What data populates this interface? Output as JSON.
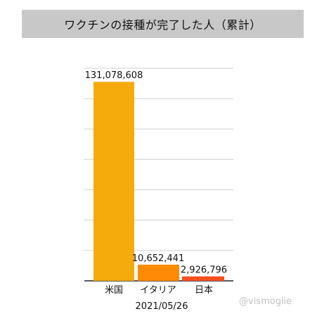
{
  "chart_data": {
    "type": "bar",
    "title": "ワクチンの接種が完了した人（累計）",
    "categories": [
      "米国",
      "イタリア",
      "日本"
    ],
    "values": [
      131078608,
      10652441,
      2926796
    ],
    "value_labels": [
      "131,078,608",
      "10,652,441",
      "2,926,796"
    ],
    "colors": [
      "#f5ab0c",
      "#ff8a05",
      "#f5501e"
    ],
    "xlabel": "2021/05/26",
    "ylabel": "",
    "ylim": [
      0,
      140000000
    ],
    "gridlines": [
      20000000,
      40000000,
      60000000,
      80000000,
      100000000,
      120000000,
      140000000
    ],
    "grid": true,
    "legend": "none"
  },
  "watermark": "@vismoglie"
}
